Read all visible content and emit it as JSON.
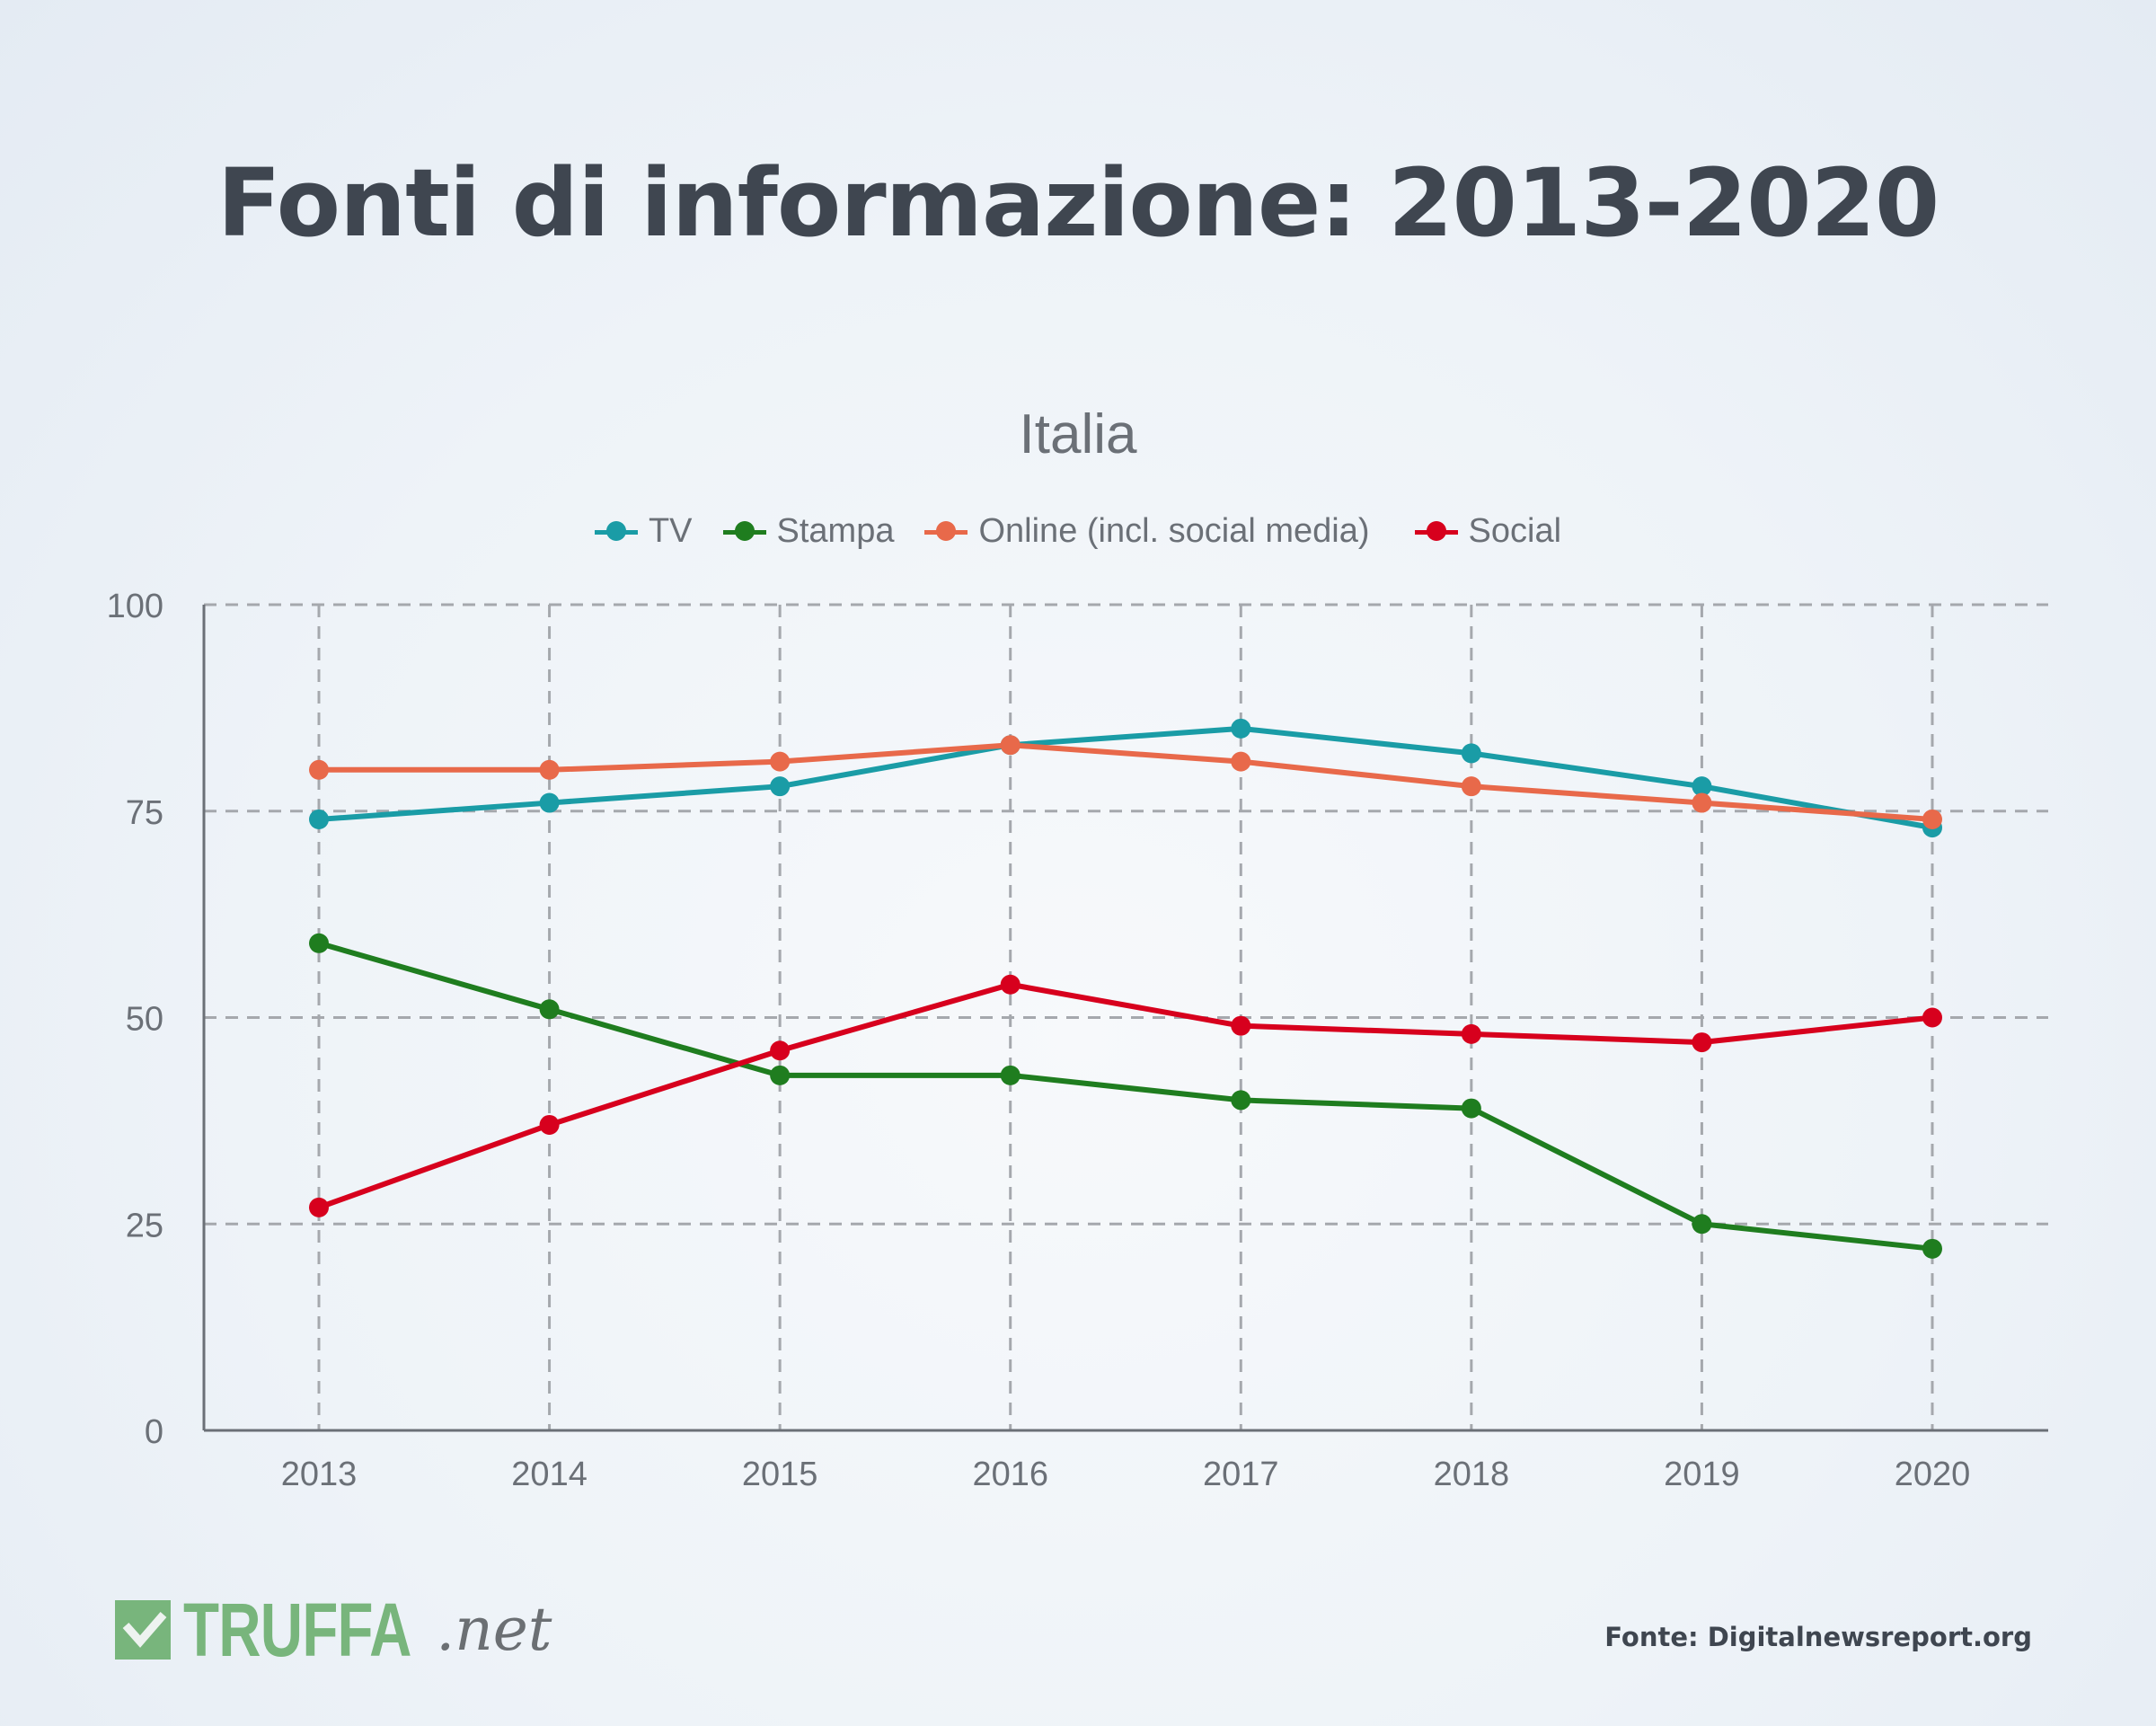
{
  "header": {
    "title": "Fonti di informazione: 2013-2020",
    "subtitle": "Italia"
  },
  "legend": [
    {
      "label": "TV",
      "color": "#1a9ca6"
    },
    {
      "label": "Stampa",
      "color": "#1f7d1f"
    },
    {
      "label": "Online (incl. social media)",
      "color": "#e8694a"
    },
    {
      "label": "Social",
      "color": "#d7001d"
    }
  ],
  "footer": {
    "logo_main": "TRUFFA",
    "logo_suffix": ".net",
    "source": "Fonte: Digitalnewsreport.org"
  },
  "chart_data": {
    "type": "line",
    "title": "Fonti di informazione: 2013-2020",
    "subtitle": "Italia",
    "xlabel": "",
    "ylabel": "",
    "categories": [
      "2013",
      "2014",
      "2015",
      "2016",
      "2017",
      "2018",
      "2019",
      "2020"
    ],
    "ylim": [
      0,
      100
    ],
    "yticks": [
      0,
      25,
      50,
      75,
      100
    ],
    "grid": true,
    "legend_position": "top",
    "series": [
      {
        "name": "TV",
        "color": "#1a9ca6",
        "values": [
          74,
          76,
          78,
          83,
          85,
          82,
          78,
          73
        ]
      },
      {
        "name": "Stampa",
        "color": "#1f7d1f",
        "values": [
          59,
          51,
          43,
          43,
          40,
          39,
          25,
          22
        ]
      },
      {
        "name": "Online (incl. social media)",
        "color": "#e8694a",
        "values": [
          80,
          80,
          81,
          83,
          81,
          78,
          76,
          74
        ]
      },
      {
        "name": "Social",
        "color": "#d7001d",
        "values": [
          27,
          37,
          46,
          54,
          49,
          48,
          47,
          50
        ]
      }
    ]
  }
}
